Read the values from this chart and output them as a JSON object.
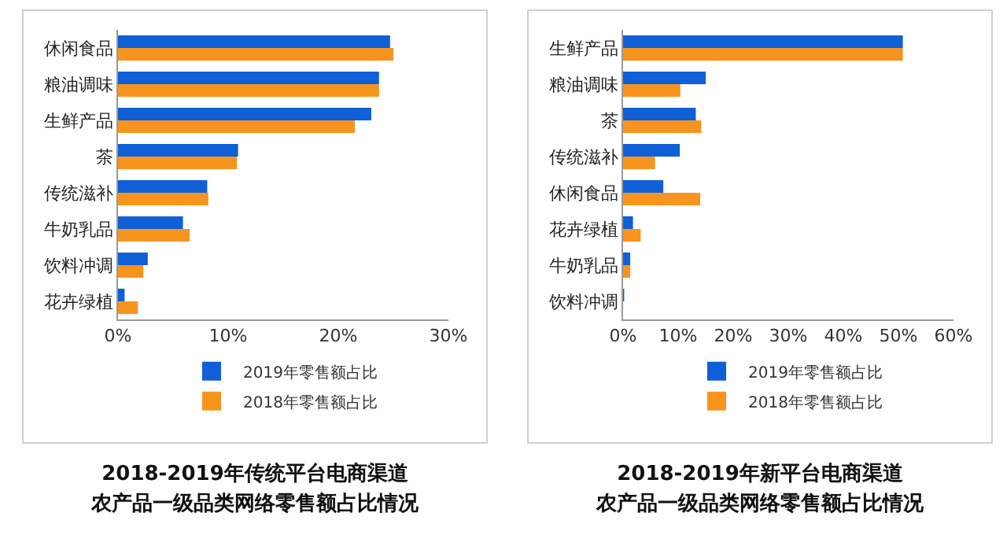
{
  "chart_data": [
    {
      "type": "bar",
      "orientation": "horizontal",
      "title": "2018-2019年传统平台电商渠道",
      "subtitle": "农产品一级品类网络零售额占比情况",
      "categories": [
        "休闲食品",
        "粮油调味",
        "生鲜产品",
        "茶",
        "传统滋补",
        "牛奶乳品",
        "饮料冲调",
        "花卉绿植"
      ],
      "series": [
        {
          "name": "2019年零售额占比",
          "color": "#0f5fd6",
          "values": [
            24.7,
            23.7,
            23.0,
            10.9,
            8.1,
            5.9,
            2.7,
            0.6
          ]
        },
        {
          "name": "2018年零售额占比",
          "color": "#f7941d",
          "values": [
            25.0,
            23.7,
            21.5,
            10.8,
            8.2,
            6.5,
            2.3,
            1.8
          ]
        }
      ],
      "xlim": [
        0,
        30
      ],
      "xticks": [
        {
          "value": 0,
          "label": "0%"
        },
        {
          "value": 10,
          "label": "10%"
        },
        {
          "value": 20,
          "label": "20%"
        },
        {
          "value": 30,
          "label": "30%"
        }
      ],
      "legend": "bottom"
    },
    {
      "type": "bar",
      "orientation": "horizontal",
      "title": "2018-2019年新平台电商渠道",
      "subtitle": "农产品一级品类网络零售额占比情况",
      "categories": [
        "生鲜产品",
        "粮油调味",
        "茶",
        "传统滋补",
        "休闲食品",
        "花卉绿植",
        "牛奶乳品",
        "饮料冲调"
      ],
      "series": [
        {
          "name": "2019年零售额占比",
          "color": "#0f5fd6",
          "values": [
            50.8,
            15.0,
            13.2,
            10.3,
            7.3,
            1.8,
            1.3,
            0.2
          ]
        },
        {
          "name": "2018年零售额占比",
          "color": "#f7941d",
          "values": [
            50.8,
            10.4,
            14.2,
            5.8,
            14.0,
            3.2,
            1.3,
            0
          ]
        }
      ],
      "xlim": [
        0,
        60
      ],
      "xticks": [
        {
          "value": 0,
          "label": "0%"
        },
        {
          "value": 10,
          "label": "10%"
        },
        {
          "value": 20,
          "label": "20%"
        },
        {
          "value": 30,
          "label": "30%"
        },
        {
          "value": 40,
          "label": "40%"
        },
        {
          "value": 50,
          "label": "50%"
        },
        {
          "value": 60,
          "label": "60%"
        }
      ],
      "legend": "bottom"
    }
  ]
}
